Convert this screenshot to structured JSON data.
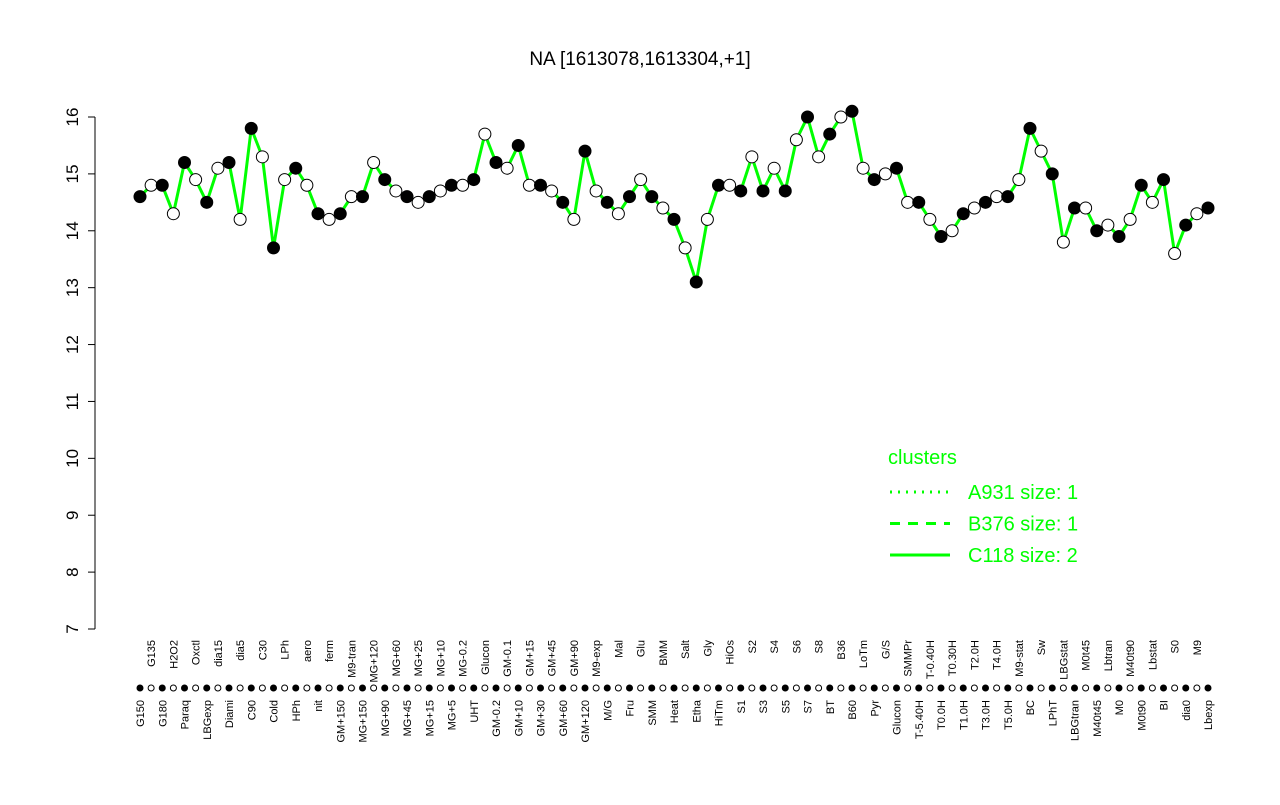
{
  "chart_data": {
    "type": "line",
    "title": "NA [1613078,1613304,+1]",
    "categories": [
      "G150",
      "G135",
      "G180",
      "H2O2",
      "Paraq",
      "Oxctl",
      "LBGexp",
      "dia15",
      "Diami",
      "dia5",
      "C90",
      "C30",
      "Cold",
      "LPh",
      "HPh",
      "aero",
      "nit",
      "ferm",
      "GM+150",
      "M9-tran",
      "MG+150",
      "MG+120",
      "MG+90",
      "MG+60",
      "MG+45",
      "MG+25",
      "MG+15",
      "MG+10",
      "MG+5",
      "MG-0.2",
      "UHT",
      "Glucon",
      "GM-0.2",
      "GM-0.1",
      "GM+10",
      "GM+15",
      "GM+30",
      "GM+45",
      "GM+60",
      "GM+90",
      "GM+120",
      "M9-exp",
      "M/G",
      "Mal",
      "Fru",
      "Glu",
      "SMM",
      "BMM",
      "Heat",
      "Salt",
      "Etha",
      "Gly",
      "HiTm",
      "HiOs",
      "S1",
      "S2",
      "S3",
      "S4",
      "S5",
      "S6",
      "S7",
      "S8",
      "BT",
      "B36",
      "B60",
      "LoTm",
      "Pyr",
      "G/S",
      "Glucon",
      "SMMPr",
      "T-5.40H",
      "T-0.40H",
      "T0.0H",
      "T0.30H",
      "T1.0H",
      "T2.0H",
      "T3.0H",
      "T4.0H",
      "T5.0H",
      "M9-stat",
      "BC",
      "Sw",
      "LPhT",
      "LBGstat",
      "LBGtran",
      "M0t45",
      "M40t45",
      "Lbtran",
      "M0",
      "M40t90",
      "M0t90",
      "Lbstat",
      "BI",
      "S0",
      "dia0",
      "M9",
      "Lbexp"
    ],
    "values": [
      14.6,
      14.8,
      14.8,
      14.3,
      15.2,
      14.9,
      14.5,
      15.1,
      15.2,
      14.2,
      15.8,
      15.3,
      13.7,
      14.9,
      15.1,
      14.8,
      14.3,
      14.2,
      14.3,
      14.6,
      14.6,
      15.2,
      14.9,
      14.7,
      14.6,
      14.5,
      14.6,
      14.7,
      14.8,
      14.8,
      14.9,
      15.7,
      15.2,
      15.1,
      15.5,
      14.8,
      14.8,
      14.7,
      14.5,
      14.2,
      15.4,
      14.7,
      14.5,
      14.3,
      14.6,
      14.9,
      14.6,
      14.4,
      14.2,
      13.7,
      13.1,
      14.2,
      14.8,
      14.8,
      14.7,
      15.3,
      14.7,
      15.1,
      14.7,
      15.6,
      16.0,
      15.3,
      15.7,
      16.0,
      16.1,
      15.1,
      14.9,
      15.0,
      15.1,
      14.5,
      14.5,
      14.2,
      13.9,
      14.0,
      14.3,
      14.4,
      14.5,
      14.6,
      14.6,
      14.9,
      15.8,
      15.4,
      15.0,
      13.8,
      14.4,
      14.4,
      14.0,
      14.1,
      13.9,
      14.2,
      14.8,
      14.5,
      14.9,
      13.6,
      14.1,
      14.3,
      14.4
    ],
    "line_color": "#00ff00",
    "marker_colors": [
      "#000000",
      "#ffffff"
    ],
    "ylim": [
      7,
      16
    ],
    "yticks": [
      7,
      8,
      9,
      10,
      11,
      12,
      13,
      14,
      15,
      16
    ],
    "legend": {
      "title": "clusters",
      "entries": [
        {
          "name": "A931 size: 1",
          "dash": "2,6"
        },
        {
          "name": "B376 size: 1",
          "dash": "10,8"
        },
        {
          "name": "C118 size: 2",
          "dash": "none"
        }
      ]
    }
  }
}
